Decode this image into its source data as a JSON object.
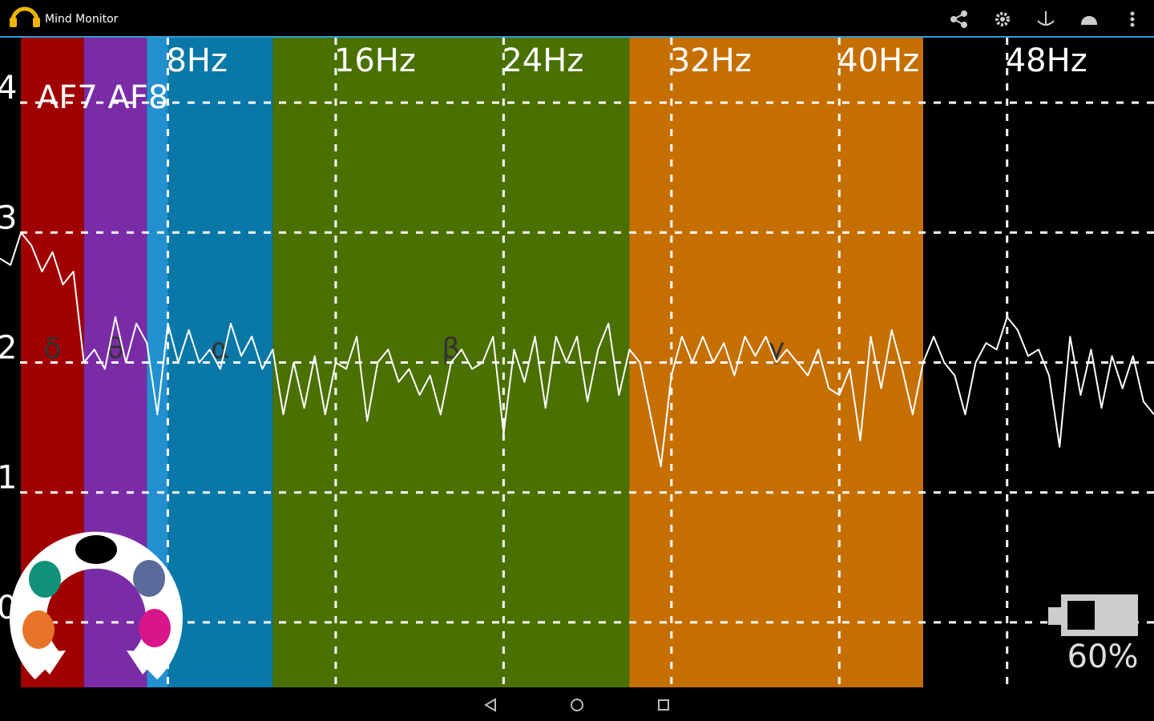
{
  "app_bar": {
    "title": "Mind Monitor"
  },
  "channel_label": "AF7 AF8",
  "battery": "60%",
  "chart_data": {
    "type": "line",
    "x": [
      0,
      0.5,
      1,
      1.5,
      2,
      2.5,
      3,
      3.5,
      4,
      4.5,
      5,
      5.5,
      6,
      6.5,
      7,
      7.5,
      8,
      8.5,
      9,
      9.5,
      10,
      10.5,
      11,
      11.5,
      12,
      12.5,
      13,
      13.5,
      14,
      14.5,
      15,
      15.5,
      16,
      16.5,
      17,
      17.5,
      18,
      18.5,
      19,
      19.5,
      20,
      20.5,
      21,
      21.5,
      22,
      22.5,
      23,
      23.5,
      24,
      24.5,
      25,
      25.5,
      26,
      26.5,
      27,
      27.5,
      28,
      28.5,
      29,
      29.5,
      30,
      30.5,
      31,
      31.5,
      32,
      32.5,
      33,
      33.5,
      34,
      34.5,
      35,
      35.5,
      36,
      36.5,
      37,
      37.5,
      38,
      38.5,
      39,
      39.5,
      40,
      40.5,
      41,
      41.5,
      42,
      42.5,
      43,
      43.5,
      44,
      44.5,
      45,
      45.5,
      46,
      46.5,
      47,
      47.5,
      48,
      48.5,
      49,
      49.5,
      50,
      50.5,
      51,
      51.5,
      52,
      52.5,
      53,
      53.5,
      54,
      54.5,
      55
    ],
    "values": [
      2.8,
      2.75,
      3.0,
      2.9,
      2.7,
      2.85,
      2.6,
      2.7,
      2.0,
      2.1,
      1.95,
      2.35,
      2.0,
      2.3,
      2.15,
      1.6,
      2.3,
      2.0,
      2.25,
      2.0,
      2.1,
      1.95,
      2.3,
      2.05,
      2.2,
      1.95,
      2.1,
      1.6,
      2.0,
      1.65,
      2.05,
      1.6,
      2.0,
      1.95,
      2.2,
      1.55,
      2.0,
      2.1,
      1.85,
      1.95,
      1.75,
      1.9,
      1.6,
      2.0,
      2.1,
      1.95,
      2.0,
      2.2,
      1.45,
      2.1,
      1.85,
      2.2,
      1.65,
      2.2,
      2.0,
      2.2,
      1.7,
      2.1,
      2.3,
      1.75,
      2.1,
      2.0,
      1.6,
      1.2,
      1.9,
      2.2,
      2.0,
      2.2,
      2.0,
      2.15,
      1.9,
      2.2,
      2.05,
      2.2,
      2.0,
      2.1,
      2.0,
      1.9,
      2.1,
      1.8,
      1.75,
      1.95,
      1.4,
      2.2,
      1.8,
      2.25,
      1.95,
      1.6,
      2.0,
      2.2,
      2.0,
      1.9,
      1.6,
      2.0,
      2.15,
      2.1,
      2.35,
      2.25,
      2.05,
      2.1,
      1.9,
      1.35,
      2.2,
      1.75,
      2.1,
      1.65,
      2.05,
      1.8,
      2.05,
      1.7,
      1.6
    ],
    "color": "#ffffff",
    "xlim": [
      0,
      55
    ],
    "ylim": [
      -0.5,
      4.5
    ],
    "xticks": [
      {
        "value": 8,
        "label": "8Hz"
      },
      {
        "value": 16,
        "label": "16Hz"
      },
      {
        "value": 24,
        "label": "24Hz"
      },
      {
        "value": 32,
        "label": "32Hz"
      },
      {
        "value": 40,
        "label": "40Hz"
      },
      {
        "value": 48,
        "label": "48Hz"
      }
    ],
    "yticks": [
      0,
      1,
      2,
      3,
      4
    ],
    "grid": true,
    "bands": [
      {
        "label": "δ",
        "from": 1,
        "to": 4,
        "color": "#a00000"
      },
      {
        "label": "θ",
        "from": 4,
        "to": 7,
        "color": "#7a2ca6"
      },
      {
        "label": null,
        "from": 7,
        "to": 8,
        "color": "#2290cf"
      },
      {
        "label": "α",
        "from": 8,
        "to": 13,
        "color": "#0a78a6"
      },
      {
        "label": "β",
        "from": 13,
        "to": 30,
        "color": "#4a7000"
      },
      {
        "label": "γ",
        "from": 30,
        "to": 44,
        "color": "#c56f00"
      }
    ]
  }
}
